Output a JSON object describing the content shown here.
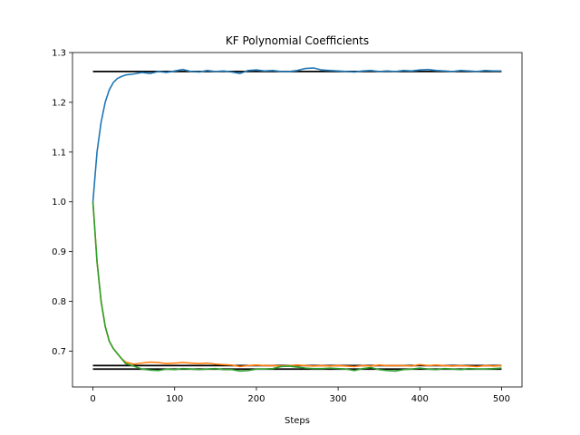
{
  "chart_data": {
    "type": "line",
    "title": "KF Polynomial Coefficients",
    "xlabel": "Steps",
    "ylabel": "",
    "xlim": [
      -25,
      525
    ],
    "ylim": [
      0.628,
      1.3
    ],
    "xticks": [
      0,
      100,
      200,
      300,
      400,
      500
    ],
    "yticks": [
      0.7,
      0.8,
      0.9,
      1.0,
      1.1,
      1.2,
      1.3
    ],
    "xtick_labels": [
      "0",
      "100",
      "200",
      "300",
      "400",
      "500"
    ],
    "ytick_labels": [
      "0.7",
      "0.8",
      "0.9",
      "1.0",
      "1.1",
      "1.2",
      "1.3"
    ],
    "grid": false,
    "legend": false,
    "series": [
      {
        "color": "#1f77b4",
        "x": [
          0,
          5,
          10,
          15,
          20,
          25,
          30,
          35,
          40,
          50,
          60,
          70,
          80,
          90,
          100,
          110,
          120,
          130,
          140,
          150,
          160,
          170,
          180,
          190,
          200,
          210,
          220,
          230,
          240,
          250,
          260,
          270,
          280,
          290,
          300,
          310,
          320,
          330,
          340,
          350,
          360,
          370,
          380,
          390,
          400,
          410,
          420,
          430,
          440,
          450,
          460,
          470,
          480,
          490,
          500
        ],
        "values": [
          1.0,
          1.1,
          1.16,
          1.2,
          1.225,
          1.24,
          1.248,
          1.252,
          1.255,
          1.257,
          1.26,
          1.258,
          1.262,
          1.26,
          1.263,
          1.266,
          1.262,
          1.261,
          1.264,
          1.262,
          1.263,
          1.261,
          1.258,
          1.264,
          1.265,
          1.263,
          1.264,
          1.262,
          1.262,
          1.264,
          1.268,
          1.269,
          1.265,
          1.264,
          1.263,
          1.262,
          1.261,
          1.263,
          1.264,
          1.262,
          1.263,
          1.262,
          1.264,
          1.263,
          1.265,
          1.266,
          1.264,
          1.263,
          1.262,
          1.264,
          1.263,
          1.262,
          1.264,
          1.263,
          1.263
        ]
      },
      {
        "color": "#ff7f0e",
        "x": [
          0,
          5,
          10,
          15,
          20,
          25,
          30,
          35,
          40,
          50,
          60,
          70,
          80,
          90,
          100,
          110,
          120,
          130,
          140,
          150,
          160,
          170,
          180,
          190,
          200,
          210,
          220,
          230,
          240,
          250,
          260,
          270,
          280,
          290,
          300,
          310,
          320,
          330,
          340,
          350,
          360,
          370,
          380,
          390,
          400,
          410,
          420,
          430,
          440,
          450,
          460,
          470,
          480,
          490,
          500
        ],
        "values": [
          1.0,
          0.88,
          0.8,
          0.75,
          0.72,
          0.705,
          0.695,
          0.685,
          0.678,
          0.674,
          0.676,
          0.678,
          0.677,
          0.675,
          0.676,
          0.677,
          0.676,
          0.675,
          0.676,
          0.674,
          0.673,
          0.672,
          0.669,
          0.671,
          0.672,
          0.671,
          0.671,
          0.67,
          0.671,
          0.672,
          0.671,
          0.67,
          0.671,
          0.67,
          0.671,
          0.67,
          0.669,
          0.671,
          0.67,
          0.672,
          0.671,
          0.671,
          0.671,
          0.67,
          0.673,
          0.671,
          0.672,
          0.671,
          0.67,
          0.671,
          0.67,
          0.669,
          0.671,
          0.67,
          0.671
        ]
      },
      {
        "color": "#2ca02c",
        "x": [
          0,
          5,
          10,
          15,
          20,
          25,
          30,
          35,
          40,
          50,
          60,
          70,
          80,
          90,
          100,
          110,
          120,
          130,
          140,
          150,
          160,
          170,
          180,
          190,
          200,
          210,
          220,
          230,
          240,
          250,
          260,
          270,
          280,
          290,
          300,
          310,
          320,
          330,
          340,
          350,
          360,
          370,
          380,
          390,
          400,
          410,
          420,
          430,
          440,
          450,
          460,
          470,
          480,
          490,
          500
        ],
        "values": [
          1.0,
          0.88,
          0.8,
          0.75,
          0.72,
          0.705,
          0.695,
          0.685,
          0.675,
          0.67,
          0.664,
          0.662,
          0.661,
          0.664,
          0.663,
          0.665,
          0.664,
          0.663,
          0.664,
          0.665,
          0.663,
          0.663,
          0.66,
          0.661,
          0.664,
          0.664,
          0.665,
          0.669,
          0.67,
          0.668,
          0.666,
          0.665,
          0.665,
          0.666,
          0.665,
          0.664,
          0.661,
          0.665,
          0.667,
          0.663,
          0.661,
          0.66,
          0.663,
          0.664,
          0.666,
          0.664,
          0.663,
          0.665,
          0.664,
          0.663,
          0.665,
          0.664,
          0.664,
          0.665,
          0.666
        ]
      }
    ],
    "reference_lines": [
      {
        "y": 1.262,
        "x": [
          0,
          500
        ],
        "color": "#000000"
      },
      {
        "y": 0.671,
        "x": [
          0,
          500
        ],
        "color": "#000000"
      },
      {
        "y": 0.664,
        "x": [
          0,
          500
        ],
        "color": "#000000"
      }
    ]
  }
}
